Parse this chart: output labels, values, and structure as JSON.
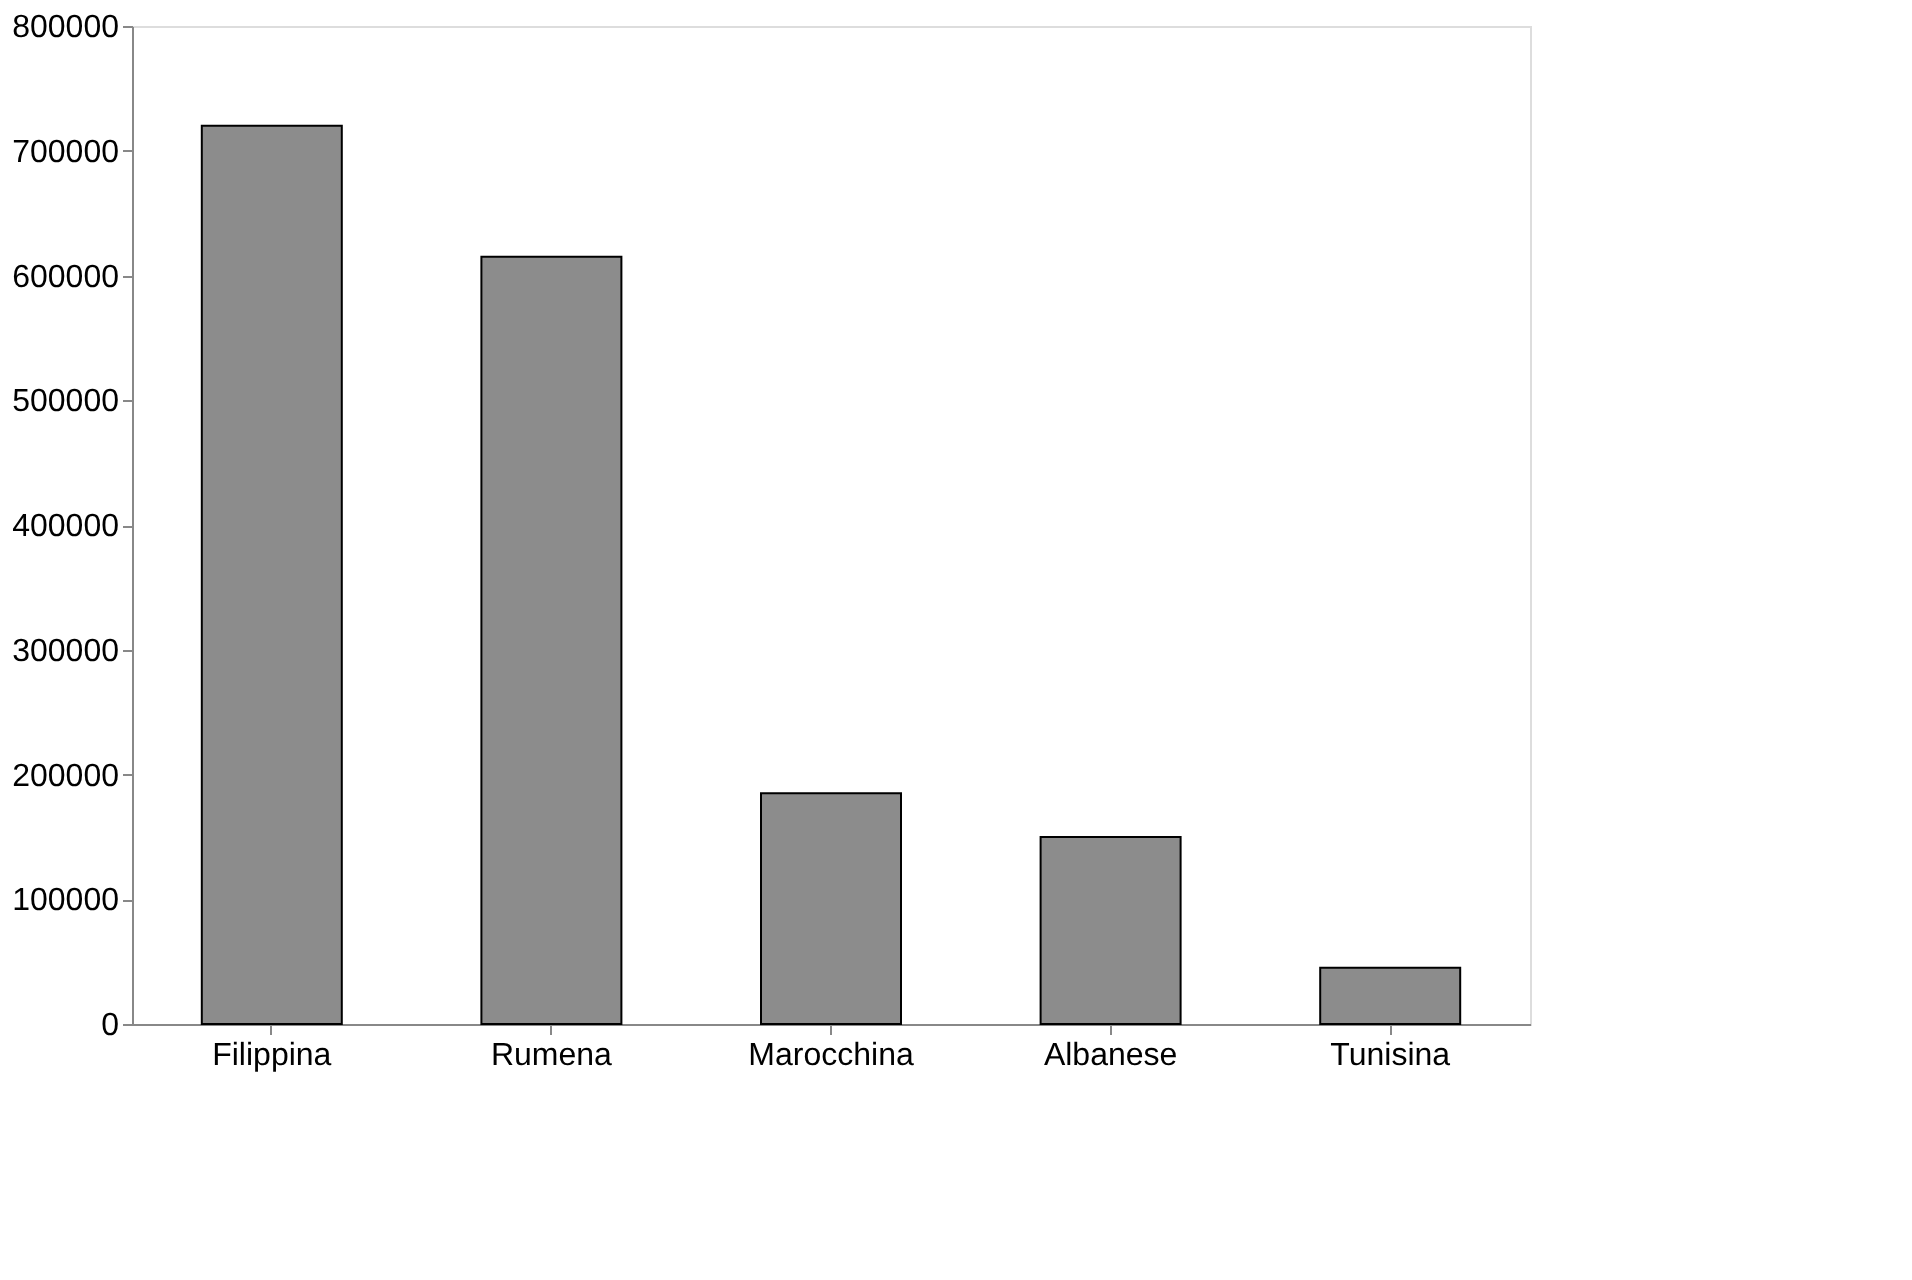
{
  "chart_data": {
    "type": "bar",
    "categories": [
      "Filippina",
      "Rumena",
      "Marocchina",
      "Albanese",
      "Tunisina"
    ],
    "values": [
      720000,
      615000,
      185000,
      150000,
      45000
    ],
    "color": "#8c8c8c",
    "ylim": [
      0,
      800000
    ],
    "yticks": [
      0,
      100000,
      200000,
      300000,
      400000,
      500000,
      600000,
      700000,
      800000
    ],
    "grid": false
  }
}
